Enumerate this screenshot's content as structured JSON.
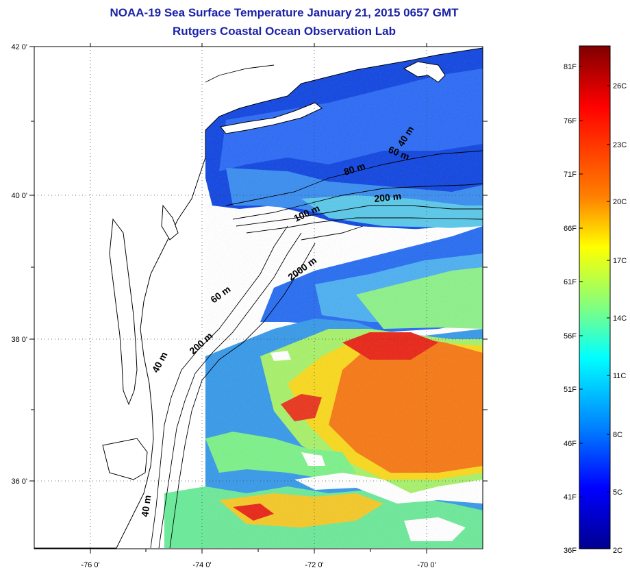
{
  "title": {
    "line1": "NOAA-19 Sea Surface Temperature January 21, 2015 0657 GMT",
    "line2": "Rutgers Coastal Ocean Observation Lab"
  },
  "map": {
    "lon_labels": [
      "-76 0'",
      "-74 0'",
      "-72 0'",
      "-70 0'"
    ],
    "lat_labels": [
      "42 0'",
      "40 0'",
      "38 0'",
      "36 0'"
    ],
    "contour_labels": [
      "40 m",
      "60 m",
      "80 m",
      "200 m",
      "100 m",
      "2000 m",
      "60 m",
      "200 m",
      "40 m",
      "40 m"
    ],
    "land_color": "#ffffff",
    "grid": "dotted"
  },
  "colorbar": {
    "fahrenheit_labels": [
      "81F",
      "76F",
      "71F",
      "66F",
      "61F",
      "56F",
      "51F",
      "46F",
      "41F",
      "36F"
    ],
    "celsius_labels": [
      "26C",
      "23C",
      "20C",
      "17C",
      "14C",
      "11C",
      "8C",
      "5C",
      "2C"
    ],
    "colors": [
      "#7f0000",
      "#ff0000",
      "#ff8000",
      "#ffff00",
      "#80ff80",
      "#00ffff",
      "#0080ff",
      "#0000ff",
      "#00008f"
    ]
  }
}
